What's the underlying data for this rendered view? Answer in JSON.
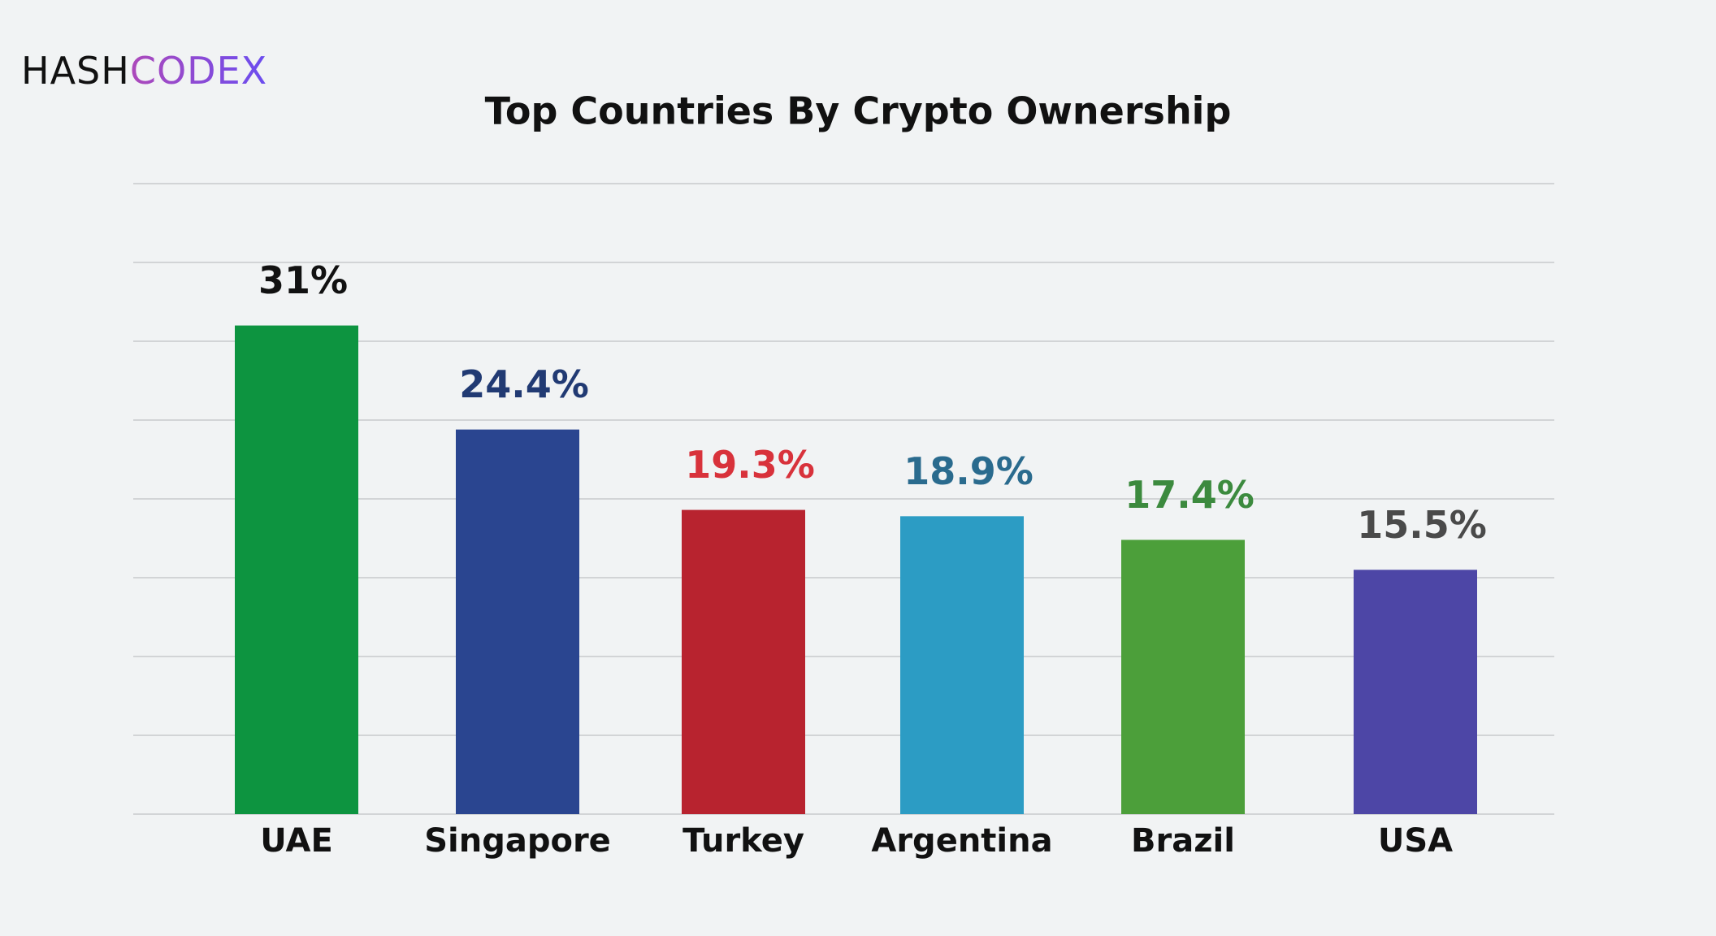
{
  "logo": [
    "HASH",
    "CODEX"
  ],
  "chart_data": {
    "type": "bar",
    "title": "Top Countries By Crypto Ownership",
    "categories": [
      "UAE",
      "Singapore",
      "Turkey",
      "Argentina",
      "Brazil",
      "USA"
    ],
    "values": [
      31,
      24.4,
      19.3,
      18.9,
      17.4,
      15.5
    ],
    "value_labels": [
      "31%",
      "24.4%",
      "19.3%",
      "18.9%",
      "17.4%",
      "15.5%"
    ],
    "colors": [
      "#0d9440",
      "#2a4590",
      "#b8232f",
      "#2c9cc4",
      "#4c9f3a",
      "#4d46a6"
    ],
    "label_colors": [
      "#111111",
      "#213a73",
      "#d8323b",
      "#2a6b8e",
      "#3c8a3e",
      "#4a4a4a"
    ],
    "ylim": [
      0,
      40
    ],
    "yticks": [
      0,
      5,
      10,
      15,
      20,
      25,
      30,
      35,
      40
    ],
    "grid": true
  }
}
